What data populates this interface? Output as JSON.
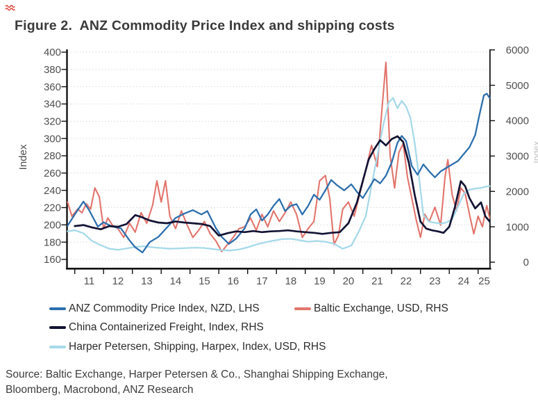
{
  "title": "Figure 2.  ANZ Commodity Price Index and shipping costs",
  "source": {
    "line1": "Source: Baltic Exchange, Harper Petersen & Co., Shanghai Shipping Exchange,",
    "line2": "Bloomberg, Macrobond, ANZ Research"
  },
  "decorations": {
    "top_left_mark_color": "#df4a3e"
  },
  "chart_data": {
    "type": "line",
    "title": "Figure 2.  ANZ Commodity Price Index and shipping costs",
    "left_axis": {
      "label": "Index",
      "ticks": [
        400,
        380,
        360,
        340,
        320,
        300,
        280,
        260,
        240,
        220,
        200,
        180,
        160
      ],
      "range": [
        160,
        400
      ]
    },
    "right_axis": {
      "ticks": [
        6000,
        5000,
        4000,
        3000,
        2000,
        1000,
        0
      ],
      "range": [
        0,
        6000
      ],
      "cropped_edge_label": "Index"
    },
    "x_axis": {
      "tick_years": [
        2011,
        2012,
        2013,
        2014,
        2015,
        2016,
        2017,
        2018,
        2019,
        2020,
        2021,
        2022,
        2023,
        2024,
        2025
      ],
      "labels": [
        "11",
        "12",
        "13",
        "14",
        "15",
        "16",
        "17",
        "18",
        "19",
        "20",
        "21",
        "22",
        "23",
        "24",
        "25"
      ]
    },
    "grid": "horizontal-dotted",
    "legend_position": "bottom",
    "series": [
      {
        "name": "ANZ Commodity Price Index, NZD, LHS",
        "axis": "LHS",
        "color": "#2d6fae",
        "points": [
          [
            10.75,
            199
          ],
          [
            11.0,
            212
          ],
          [
            11.3,
            227
          ],
          [
            11.5,
            217
          ],
          [
            11.8,
            198
          ],
          [
            12.0,
            203
          ],
          [
            12.3,
            198
          ],
          [
            12.6,
            196
          ],
          [
            12.9,
            182
          ],
          [
            13.1,
            174
          ],
          [
            13.35,
            168
          ],
          [
            13.6,
            180
          ],
          [
            13.9,
            186
          ],
          [
            14.2,
            197
          ],
          [
            14.5,
            208
          ],
          [
            14.8,
            213
          ],
          [
            15.1,
            217
          ],
          [
            15.4,
            212
          ],
          [
            15.6,
            216
          ],
          [
            15.9,
            196
          ],
          [
            16.1,
            186
          ],
          [
            16.35,
            178
          ],
          [
            16.6,
            184
          ],
          [
            16.9,
            196
          ],
          [
            17.1,
            212
          ],
          [
            17.3,
            218
          ],
          [
            17.5,
            205
          ],
          [
            17.7,
            212
          ],
          [
            17.9,
            222
          ],
          [
            18.1,
            230
          ],
          [
            18.3,
            216
          ],
          [
            18.5,
            222
          ],
          [
            18.7,
            224
          ],
          [
            18.9,
            212
          ],
          [
            19.1,
            222
          ],
          [
            19.3,
            235
          ],
          [
            19.5,
            229
          ],
          [
            19.7,
            240
          ],
          [
            19.9,
            252
          ],
          [
            20.1,
            246
          ],
          [
            20.35,
            240
          ],
          [
            20.6,
            247
          ],
          [
            20.8,
            238
          ],
          [
            21.0,
            231
          ],
          [
            21.2,
            242
          ],
          [
            21.4,
            253
          ],
          [
            21.6,
            248
          ],
          [
            21.8,
            257
          ],
          [
            22.0,
            272
          ],
          [
            22.2,
            295
          ],
          [
            22.35,
            303
          ],
          [
            22.5,
            297
          ],
          [
            22.7,
            268
          ],
          [
            22.9,
            258
          ],
          [
            23.1,
            270
          ],
          [
            23.3,
            262
          ],
          [
            23.5,
            255
          ],
          [
            23.7,
            262
          ],
          [
            23.9,
            266
          ],
          [
            24.1,
            270
          ],
          [
            24.3,
            274
          ],
          [
            24.5,
            282
          ],
          [
            24.7,
            290
          ],
          [
            24.9,
            304
          ],
          [
            25.05,
            328
          ],
          [
            25.2,
            350
          ],
          [
            25.3,
            352
          ],
          [
            25.4,
            347
          ]
        ]
      },
      {
        "name": "Baltic Exchange, USD, RHS",
        "axis": "RHS",
        "color": "#e2746c",
        "points": [
          [
            10.75,
            1700
          ],
          [
            10.9,
            1300
          ],
          [
            11.1,
            1500
          ],
          [
            11.25,
            1400
          ],
          [
            11.4,
            1650
          ],
          [
            11.55,
            1500
          ],
          [
            11.7,
            2100
          ],
          [
            11.85,
            1850
          ],
          [
            12.0,
            950
          ],
          [
            12.15,
            1250
          ],
          [
            12.3,
            1050
          ],
          [
            12.5,
            950
          ],
          [
            12.7,
            700
          ],
          [
            12.9,
            1100
          ],
          [
            13.1,
            850
          ],
          [
            13.3,
            1400
          ],
          [
            13.5,
            1100
          ],
          [
            13.7,
            1600
          ],
          [
            13.85,
            2300
          ],
          [
            14.0,
            1700
          ],
          [
            14.15,
            2300
          ],
          [
            14.3,
            1300
          ],
          [
            14.5,
            950
          ],
          [
            14.7,
            1450
          ],
          [
            14.9,
            1050
          ],
          [
            15.1,
            700
          ],
          [
            15.3,
            900
          ],
          [
            15.5,
            1150
          ],
          [
            15.7,
            800
          ],
          [
            15.9,
            600
          ],
          [
            16.1,
            300
          ],
          [
            16.3,
            500
          ],
          [
            16.5,
            700
          ],
          [
            16.7,
            950
          ],
          [
            16.9,
            1000
          ],
          [
            17.1,
            1250
          ],
          [
            17.3,
            900
          ],
          [
            17.5,
            1350
          ],
          [
            17.7,
            1000
          ],
          [
            17.9,
            1450
          ],
          [
            18.1,
            1150
          ],
          [
            18.3,
            1400
          ],
          [
            18.5,
            1700
          ],
          [
            18.7,
            1350
          ],
          [
            18.9,
            700
          ],
          [
            19.1,
            950
          ],
          [
            19.3,
            1150
          ],
          [
            19.5,
            2300
          ],
          [
            19.7,
            2450
          ],
          [
            19.85,
            1800
          ],
          [
            20.0,
            500
          ],
          [
            20.15,
            750
          ],
          [
            20.3,
            1500
          ],
          [
            20.5,
            1700
          ],
          [
            20.7,
            1300
          ],
          [
            20.9,
            1950
          ],
          [
            21.1,
            2600
          ],
          [
            21.3,
            3300
          ],
          [
            21.5,
            2700
          ],
          [
            21.65,
            4200
          ],
          [
            21.8,
            5650
          ],
          [
            21.95,
            3000
          ],
          [
            22.1,
            2100
          ],
          [
            22.25,
            3100
          ],
          [
            22.4,
            3350
          ],
          [
            22.55,
            2400
          ],
          [
            22.7,
            1800
          ],
          [
            22.85,
            1200
          ],
          [
            23.0,
            700
          ],
          [
            23.15,
            1350
          ],
          [
            23.3,
            1150
          ],
          [
            23.5,
            1550
          ],
          [
            23.7,
            1050
          ],
          [
            23.85,
            2400
          ],
          [
            23.95,
            2900
          ],
          [
            24.1,
            1900
          ],
          [
            24.25,
            1450
          ],
          [
            24.4,
            2100
          ],
          [
            24.55,
            1950
          ],
          [
            24.7,
            1350
          ],
          [
            24.85,
            800
          ],
          [
            25.0,
            1300
          ],
          [
            25.15,
            1000
          ],
          [
            25.3,
            1600
          ],
          [
            25.4,
            1250
          ]
        ]
      },
      {
        "name": "China Containerized Freight, Index, RHS",
        "axis": "RHS",
        "color": "#131334",
        "points": [
          [
            11.0,
            1020
          ],
          [
            11.3,
            1050
          ],
          [
            11.6,
            980
          ],
          [
            11.9,
            930
          ],
          [
            12.2,
            1020
          ],
          [
            12.5,
            1000
          ],
          [
            12.8,
            1080
          ],
          [
            13.1,
            1330
          ],
          [
            13.3,
            1280
          ],
          [
            13.6,
            1180
          ],
          [
            13.9,
            1120
          ],
          [
            14.2,
            1100
          ],
          [
            14.5,
            1150
          ],
          [
            14.8,
            1120
          ],
          [
            15.1,
            1100
          ],
          [
            15.4,
            1080
          ],
          [
            15.7,
            1020
          ],
          [
            16.0,
            750
          ],
          [
            16.3,
            820
          ],
          [
            16.6,
            870
          ],
          [
            16.9,
            850
          ],
          [
            17.2,
            880
          ],
          [
            17.5,
            850
          ],
          [
            17.8,
            870
          ],
          [
            18.1,
            880
          ],
          [
            18.4,
            900
          ],
          [
            18.7,
            870
          ],
          [
            19.0,
            850
          ],
          [
            19.3,
            830
          ],
          [
            19.6,
            800
          ],
          [
            19.9,
            830
          ],
          [
            20.2,
            850
          ],
          [
            20.5,
            1100
          ],
          [
            20.8,
            1700
          ],
          [
            21.0,
            2300
          ],
          [
            21.2,
            2900
          ],
          [
            21.4,
            3200
          ],
          [
            21.6,
            3450
          ],
          [
            21.8,
            3300
          ],
          [
            22.0,
            3480
          ],
          [
            22.2,
            3560
          ],
          [
            22.4,
            3400
          ],
          [
            22.6,
            2800
          ],
          [
            22.8,
            1900
          ],
          [
            23.0,
            1150
          ],
          [
            23.2,
            950
          ],
          [
            23.4,
            900
          ],
          [
            23.6,
            870
          ],
          [
            23.8,
            830
          ],
          [
            24.0,
            1000
          ],
          [
            24.2,
            1570
          ],
          [
            24.4,
            2290
          ],
          [
            24.55,
            2150
          ],
          [
            24.7,
            1810
          ],
          [
            24.9,
            1520
          ],
          [
            25.1,
            1690
          ],
          [
            25.25,
            1300
          ],
          [
            25.4,
            1150
          ]
        ]
      },
      {
        "name": "Harper Petersen, Shipping, Harpex, Index, USD, RHS",
        "axis": "RHS",
        "color": "#a6d9e9",
        "points": [
          [
            10.75,
            870
          ],
          [
            11.0,
            900
          ],
          [
            11.3,
            820
          ],
          [
            11.6,
            600
          ],
          [
            11.9,
            480
          ],
          [
            12.2,
            380
          ],
          [
            12.5,
            350
          ],
          [
            12.8,
            390
          ],
          [
            13.1,
            430
          ],
          [
            13.4,
            450
          ],
          [
            13.7,
            420
          ],
          [
            14.0,
            400
          ],
          [
            14.3,
            380
          ],
          [
            14.6,
            390
          ],
          [
            14.9,
            400
          ],
          [
            15.2,
            410
          ],
          [
            15.5,
            400
          ],
          [
            15.8,
            370
          ],
          [
            16.1,
            340
          ],
          [
            16.4,
            330
          ],
          [
            16.7,
            360
          ],
          [
            17.0,
            420
          ],
          [
            17.3,
            500
          ],
          [
            17.6,
            560
          ],
          [
            17.9,
            610
          ],
          [
            18.2,
            650
          ],
          [
            18.5,
            660
          ],
          [
            18.8,
            620
          ],
          [
            19.1,
            580
          ],
          [
            19.4,
            600
          ],
          [
            19.7,
            580
          ],
          [
            20.0,
            520
          ],
          [
            20.3,
            380
          ],
          [
            20.6,
            470
          ],
          [
            20.85,
            850
          ],
          [
            21.1,
            1300
          ],
          [
            21.3,
            2170
          ],
          [
            21.5,
            3000
          ],
          [
            21.7,
            3850
          ],
          [
            21.9,
            4520
          ],
          [
            22.05,
            4640
          ],
          [
            22.2,
            4350
          ],
          [
            22.35,
            4560
          ],
          [
            22.5,
            4400
          ],
          [
            22.65,
            4080
          ],
          [
            22.8,
            3370
          ],
          [
            22.95,
            2400
          ],
          [
            23.1,
            1330
          ],
          [
            23.3,
            1140
          ],
          [
            23.5,
            1115
          ],
          [
            23.7,
            1090
          ],
          [
            23.9,
            1120
          ],
          [
            24.1,
            1210
          ],
          [
            24.3,
            1570
          ],
          [
            24.5,
            1930
          ],
          [
            24.7,
            2050
          ],
          [
            24.9,
            2080
          ],
          [
            25.1,
            2100
          ],
          [
            25.3,
            2140
          ],
          [
            25.4,
            2150
          ]
        ]
      }
    ]
  }
}
